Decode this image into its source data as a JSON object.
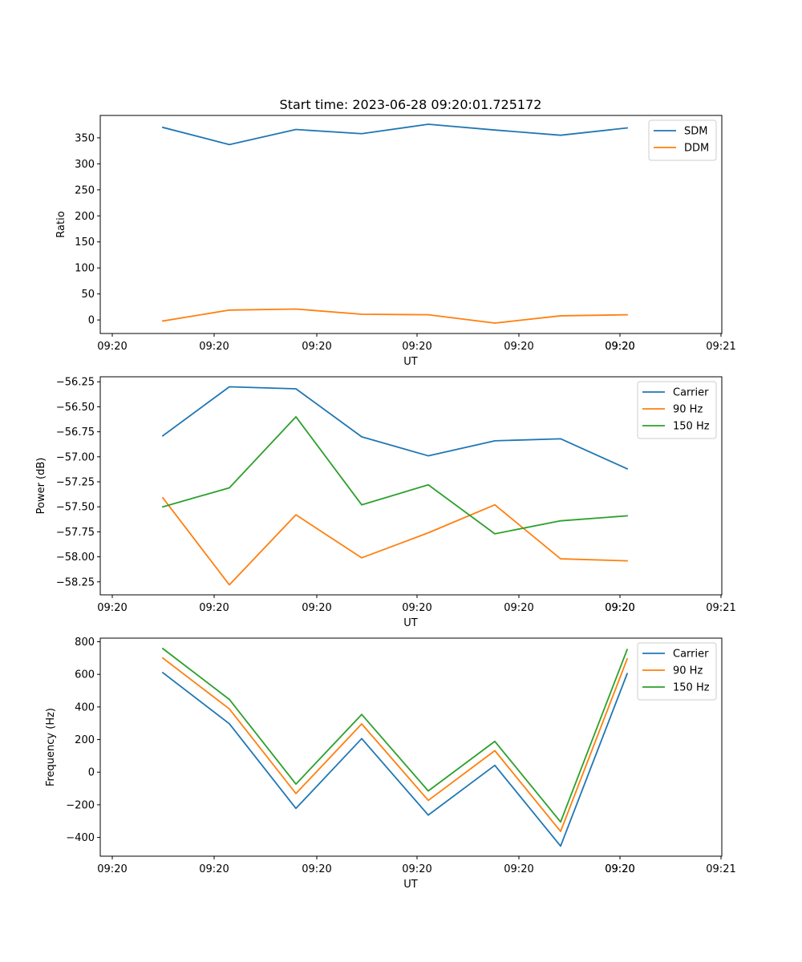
{
  "figure_title": "Start time: 2023-06-28 09:20:01.725172",
  "colors": {
    "blue": "#1f77b4",
    "orange": "#ff7f0e",
    "green": "#2ca02c"
  },
  "chart_data": [
    {
      "type": "line",
      "title": "Start time: 2023-06-28 09:20:01.725172",
      "xlabel": "UT",
      "ylabel": "Ratio",
      "x_ticks": [
        "09:20",
        "09:20",
        "09:20",
        "09:20",
        "09:20",
        "09:20",
        "09:20",
        "09:21"
      ],
      "y_ticks": [
        "0",
        "50",
        "100",
        "150",
        "200",
        "250",
        "300",
        "350"
      ],
      "ylim": [
        -26,
        393
      ],
      "legend_position": "top-right",
      "series": [
        {
          "name": "SDM",
          "color": "#1f77b4",
          "values": [
            370,
            337,
            366,
            358,
            376,
            365,
            355,
            369
          ]
        },
        {
          "name": "DDM",
          "color": "#ff7f0e",
          "values": [
            -2,
            19,
            21,
            11,
            10,
            -6,
            8,
            10
          ]
        }
      ]
    },
    {
      "type": "line",
      "xlabel": "UT",
      "ylabel": "Power (dB)",
      "x_ticks": [
        "09:20",
        "09:20",
        "09:20",
        "09:20",
        "09:20",
        "09:20",
        "09:20",
        "09:21"
      ],
      "y_ticks": [
        "−58.25",
        "−58.00",
        "−57.75",
        "−57.50",
        "−57.25",
        "−57.00",
        "−56.75",
        "−56.50",
        "−56.25"
      ],
      "ylim": [
        -58.38,
        -56.2
      ],
      "legend_position": "top-right",
      "series": [
        {
          "name": "Carrier",
          "color": "#1f77b4",
          "values": [
            -56.79,
            -56.3,
            -56.32,
            -56.8,
            -56.99,
            -56.84,
            -56.82,
            -57.12
          ]
        },
        {
          "name": "90 Hz",
          "color": "#ff7f0e",
          "values": [
            -57.41,
            -58.28,
            -57.58,
            -58.01,
            -57.76,
            -57.48,
            -58.02,
            -58.04
          ]
        },
        {
          "name": "150 Hz",
          "color": "#2ca02c",
          "values": [
            -57.5,
            -57.31,
            -56.6,
            -57.48,
            -57.28,
            -57.77,
            -57.64,
            -57.59
          ]
        }
      ]
    },
    {
      "type": "line",
      "xlabel": "UT",
      "ylabel": "Frequency (Hz)",
      "x_ticks": [
        "09:20",
        "09:20",
        "09:20",
        "09:20",
        "09:20",
        "09:20",
        "09:20",
        "09:21"
      ],
      "y_ticks": [
        "−400",
        "−200",
        "0",
        "200",
        "400",
        "600",
        "800"
      ],
      "ylim": [
        -515,
        822
      ],
      "legend_position": "top-right",
      "series": [
        {
          "name": "Carrier",
          "color": "#1f77b4",
          "values": [
            610,
            297,
            -222,
            206,
            -263,
            42,
            -453,
            604
          ]
        },
        {
          "name": "90 Hz",
          "color": "#ff7f0e",
          "values": [
            700,
            388,
            -131,
            296,
            -173,
            132,
            -363,
            694
          ]
        },
        {
          "name": "150 Hz",
          "color": "#2ca02c",
          "values": [
            758,
            446,
            -73,
            354,
            -115,
            189,
            -305,
            752
          ]
        }
      ]
    }
  ]
}
